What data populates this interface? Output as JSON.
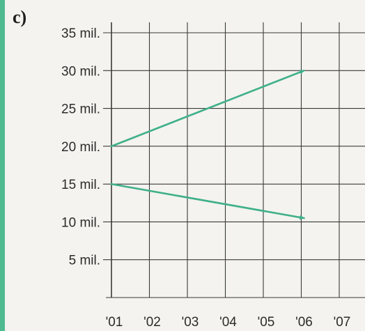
{
  "panel_label": "c)",
  "colors": {
    "arrow": "#3fb08a",
    "accent_bar": "#4fba8f",
    "grid": "#3a3a3a",
    "text": "#2b2b2b"
  },
  "chart_data": {
    "type": "line",
    "title": "",
    "xlabel": "",
    "ylabel": "",
    "x_categories": [
      "'01",
      "'02",
      "'03",
      "'04",
      "'05",
      "'06",
      "'07"
    ],
    "y_ticks": [
      {
        "value": 35000,
        "label": "35 mil."
      },
      {
        "value": 30000,
        "label": "30 mil."
      },
      {
        "value": 25000,
        "label": "25 mil."
      },
      {
        "value": 20000,
        "label": "20 mil."
      },
      {
        "value": 15000,
        "label": "15 mil."
      },
      {
        "value": 10000,
        "label": "10 mil."
      },
      {
        "value": 5000,
        "label": "5 mil."
      }
    ],
    "ylim": [
      0,
      35000
    ],
    "grid": true,
    "series": [
      {
        "x": [
          "'01",
          "'06"
        ],
        "values": [
          20000,
          30000
        ],
        "style": "arrow"
      },
      {
        "x": [
          "'01",
          "'06"
        ],
        "values": [
          15000,
          10500
        ],
        "style": "arrow"
      }
    ]
  }
}
